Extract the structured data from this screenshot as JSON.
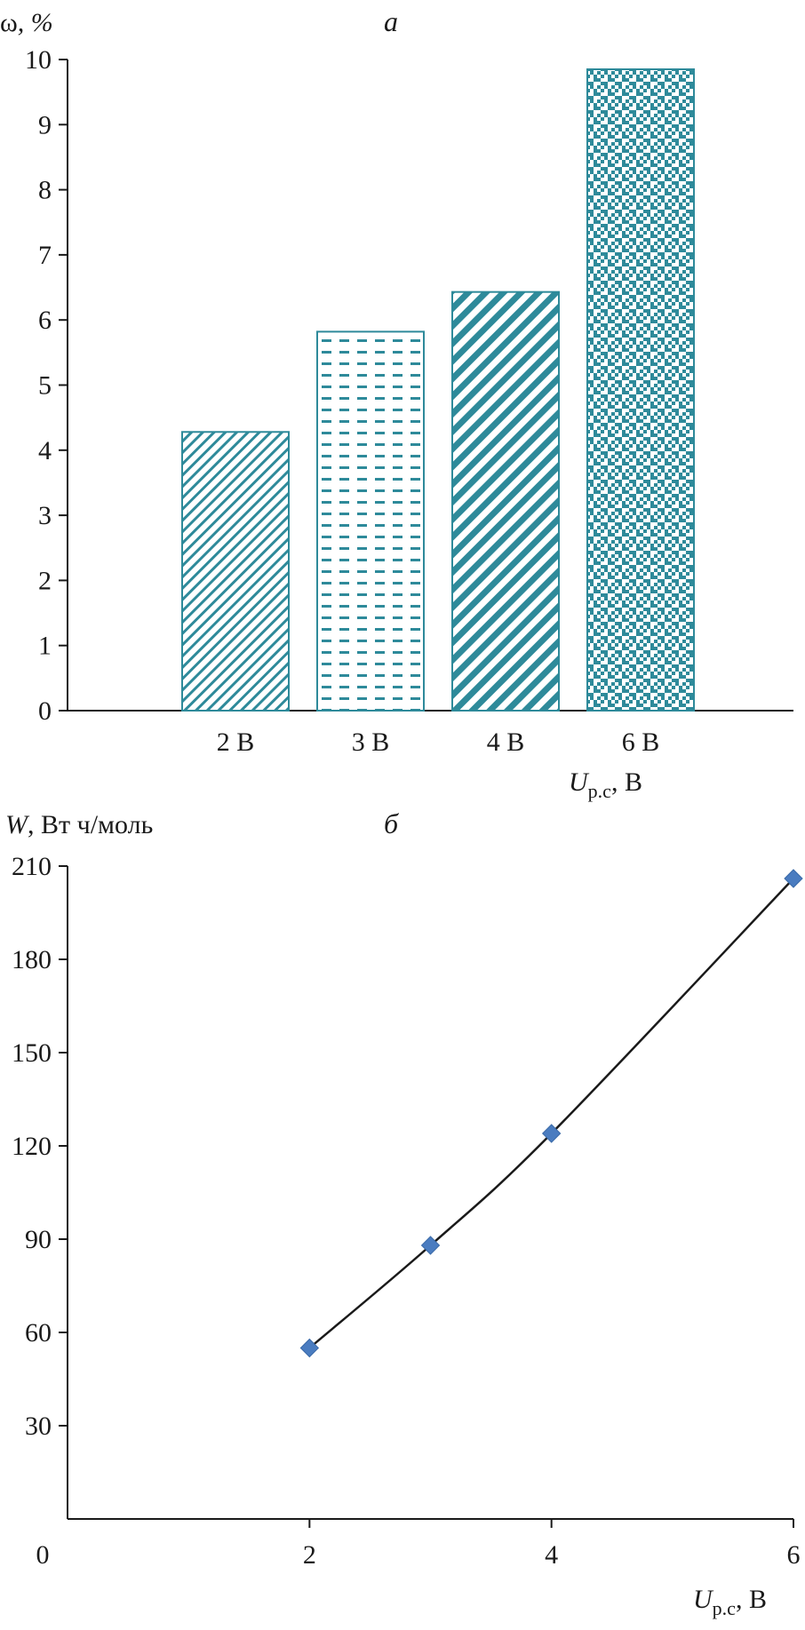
{
  "chart_data": [
    {
      "type": "bar",
      "panel_label": "а",
      "ylabel_symbol": "ω",
      "ylabel_unit": ", %",
      "xlabel_symbol": "U",
      "xlabel_subscript": "р.с",
      "xlabel_unit": ", В",
      "categories": [
        "2 В",
        "3 В",
        "4 В",
        "6 В"
      ],
      "values": [
        4.28,
        5.82,
        6.43,
        9.85
      ],
      "ylim": [
        0,
        10
      ],
      "yticks": [
        "0",
        "1",
        "2",
        "3",
        "4",
        "5",
        "6",
        "7",
        "8",
        "9",
        "10"
      ],
      "bar_patterns": [
        "fine-diagonal",
        "dashes",
        "bold-diagonal",
        "zigzag"
      ],
      "bar_color": "#2e8a9a",
      "grid": false
    },
    {
      "type": "line",
      "panel_label": "б",
      "ylabel_symbol": "W",
      "ylabel_unit": ", Вт ч/моль",
      "xlabel_symbol": "U",
      "xlabel_subscript": "р.с",
      "xlabel_unit": ", В",
      "x": [
        2,
        3,
        4,
        6
      ],
      "y": [
        55,
        88,
        124,
        206
      ],
      "xlim": [
        0,
        6
      ],
      "ylim": [
        0,
        210
      ],
      "xticks": [
        "0",
        "2",
        "4",
        "6"
      ],
      "yticks": [
        "30",
        "60",
        "90",
        "120",
        "150",
        "180",
        "210"
      ],
      "marker": "diamond",
      "marker_color": "#4a7cc0",
      "line_color": "#1a1a1a",
      "grid": false
    }
  ]
}
